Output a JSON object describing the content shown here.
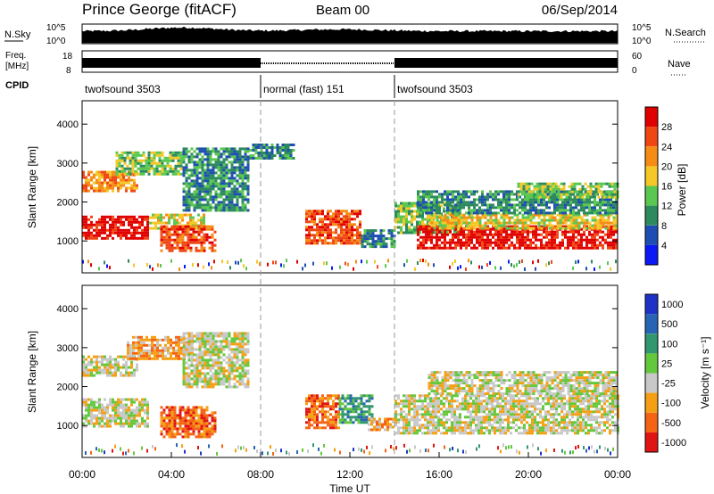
{
  "header": {
    "station": "Prince George (fitACF)",
    "beam": "Beam 00",
    "date": "06/Sep/2014"
  },
  "panels": {
    "nsky": {
      "label": "N.Sky",
      "ticks_left": [
        "10^5",
        "10^0"
      ],
      "ticks_right": [
        "10^5",
        "10^0"
      ],
      "right_label": "N.Search"
    },
    "freq": {
      "label_top": "Freq.",
      "label_bottom": "[MHz]",
      "ticks_left": [
        "18",
        "8"
      ],
      "ticks_right": [
        "60",
        "0"
      ],
      "right_label": "Nave"
    },
    "cpid": {
      "label": "CPID",
      "segments": [
        {
          "name": "twofsound 3503",
          "start": 0,
          "end": 8
        },
        {
          "name": "normal (fast) 151",
          "start": 8,
          "end": 14
        },
        {
          "name": "twofsound 3503",
          "start": 14,
          "end": 24
        }
      ]
    }
  },
  "chart_data": [
    {
      "type": "heatmap",
      "title": "",
      "ylabel": "Slant Range [km]",
      "xlabel": "",
      "xlim": [
        0,
        24
      ],
      "ylim": [
        180,
        4600
      ],
      "y_ticks": [
        1000,
        2000,
        3000,
        4000
      ],
      "colorbar": {
        "label": "Power [dB]",
        "ticks": [
          "4",
          "8",
          "12",
          "16",
          "20",
          "24",
          "28"
        ],
        "colors": [
          "#0a19f5",
          "#1e4eb4",
          "#2d8a5e",
          "#5ac850",
          "#f5c828",
          "#f58c14",
          "#f04614",
          "#e10000"
        ]
      },
      "regions": [
        {
          "x0": 0.0,
          "x1": 3.0,
          "y0": 1050,
          "y1": 1650,
          "level": 7
        },
        {
          "x0": 3.0,
          "x1": 5.5,
          "y0": 1300,
          "y1": 1700,
          "level": 4
        },
        {
          "x0": 3.5,
          "x1": 6.0,
          "y0": 750,
          "y1": 1400,
          "level": 6
        },
        {
          "x0": 0.0,
          "x1": 2.5,
          "y0": 2300,
          "y1": 2800,
          "level": 5
        },
        {
          "x0": 1.5,
          "x1": 4.5,
          "y0": 2700,
          "y1": 3300,
          "level": 3
        },
        {
          "x0": 4.5,
          "x1": 7.5,
          "y0": 1800,
          "y1": 3400,
          "level": 2
        },
        {
          "x0": 7.5,
          "x1": 9.5,
          "y0": 3100,
          "y1": 3500,
          "level": 2
        },
        {
          "x0": 10.0,
          "x1": 12.5,
          "y0": 950,
          "y1": 1800,
          "level": 6
        },
        {
          "x0": 12.5,
          "x1": 14.0,
          "y0": 850,
          "y1": 1300,
          "level": 2
        },
        {
          "x0": 14.0,
          "x1": 17.0,
          "y0": 1200,
          "y1": 2000,
          "level": 3
        },
        {
          "x0": 15.0,
          "x1": 24.0,
          "y0": 800,
          "y1": 1400,
          "level": 7
        },
        {
          "x0": 15.5,
          "x1": 24.0,
          "y0": 1300,
          "y1": 1700,
          "level": 4
        },
        {
          "x0": 15.0,
          "x1": 24.0,
          "y0": 1700,
          "y1": 2300,
          "level": 2
        },
        {
          "x0": 19.5,
          "x1": 24.0,
          "y0": 2100,
          "y1": 2500,
          "level": 3
        }
      ]
    },
    {
      "type": "heatmap",
      "title": "",
      "ylabel": "Slant Range [km]",
      "xlabel": "Time UT",
      "xlim": [
        0,
        24
      ],
      "ylim": [
        180,
        4600
      ],
      "y_ticks": [
        1000,
        2000,
        3000,
        4000
      ],
      "x_ticks": [
        "00:00",
        "04:00",
        "08:00",
        "12:00",
        "16:00",
        "20:00",
        "00:00"
      ],
      "colorbar": {
        "label": "Velocity [m s⁻¹]",
        "ticks": [
          "1000",
          "500",
          "100",
          "25",
          "-25",
          "-100",
          "-500",
          "-1000"
        ],
        "colors": [
          "#1e32c8",
          "#2864b4",
          "#32966e",
          "#64c83c",
          "#c8c8c8",
          "#f5a014",
          "#f56414",
          "#e11414"
        ]
      },
      "regions": [
        {
          "x0": 0.0,
          "x1": 3.0,
          "y0": 1000,
          "y1": 1700,
          "level": 4
        },
        {
          "x0": 0.0,
          "x1": 2.5,
          "y0": 2300,
          "y1": 2800,
          "level": 4
        },
        {
          "x0": 2.0,
          "x1": 5.0,
          "y0": 2700,
          "y1": 3300,
          "level": 5
        },
        {
          "x0": 3.5,
          "x1": 6.0,
          "y0": 700,
          "y1": 1500,
          "level": 6
        },
        {
          "x0": 4.5,
          "x1": 7.5,
          "y0": 2000,
          "y1": 3400,
          "level": 4
        },
        {
          "x0": 10.0,
          "x1": 11.5,
          "y0": 950,
          "y1": 1800,
          "level": 6
        },
        {
          "x0": 11.5,
          "x1": 13.0,
          "y0": 1100,
          "y1": 1800,
          "level": 2
        },
        {
          "x0": 12.8,
          "x1": 14.0,
          "y0": 900,
          "y1": 1200,
          "level": 5
        },
        {
          "x0": 14.0,
          "x1": 24.0,
          "y0": 800,
          "y1": 1800,
          "level": 4
        },
        {
          "x0": 15.5,
          "x1": 24.0,
          "y0": 1800,
          "y1": 2400,
          "level": 4
        }
      ]
    }
  ]
}
